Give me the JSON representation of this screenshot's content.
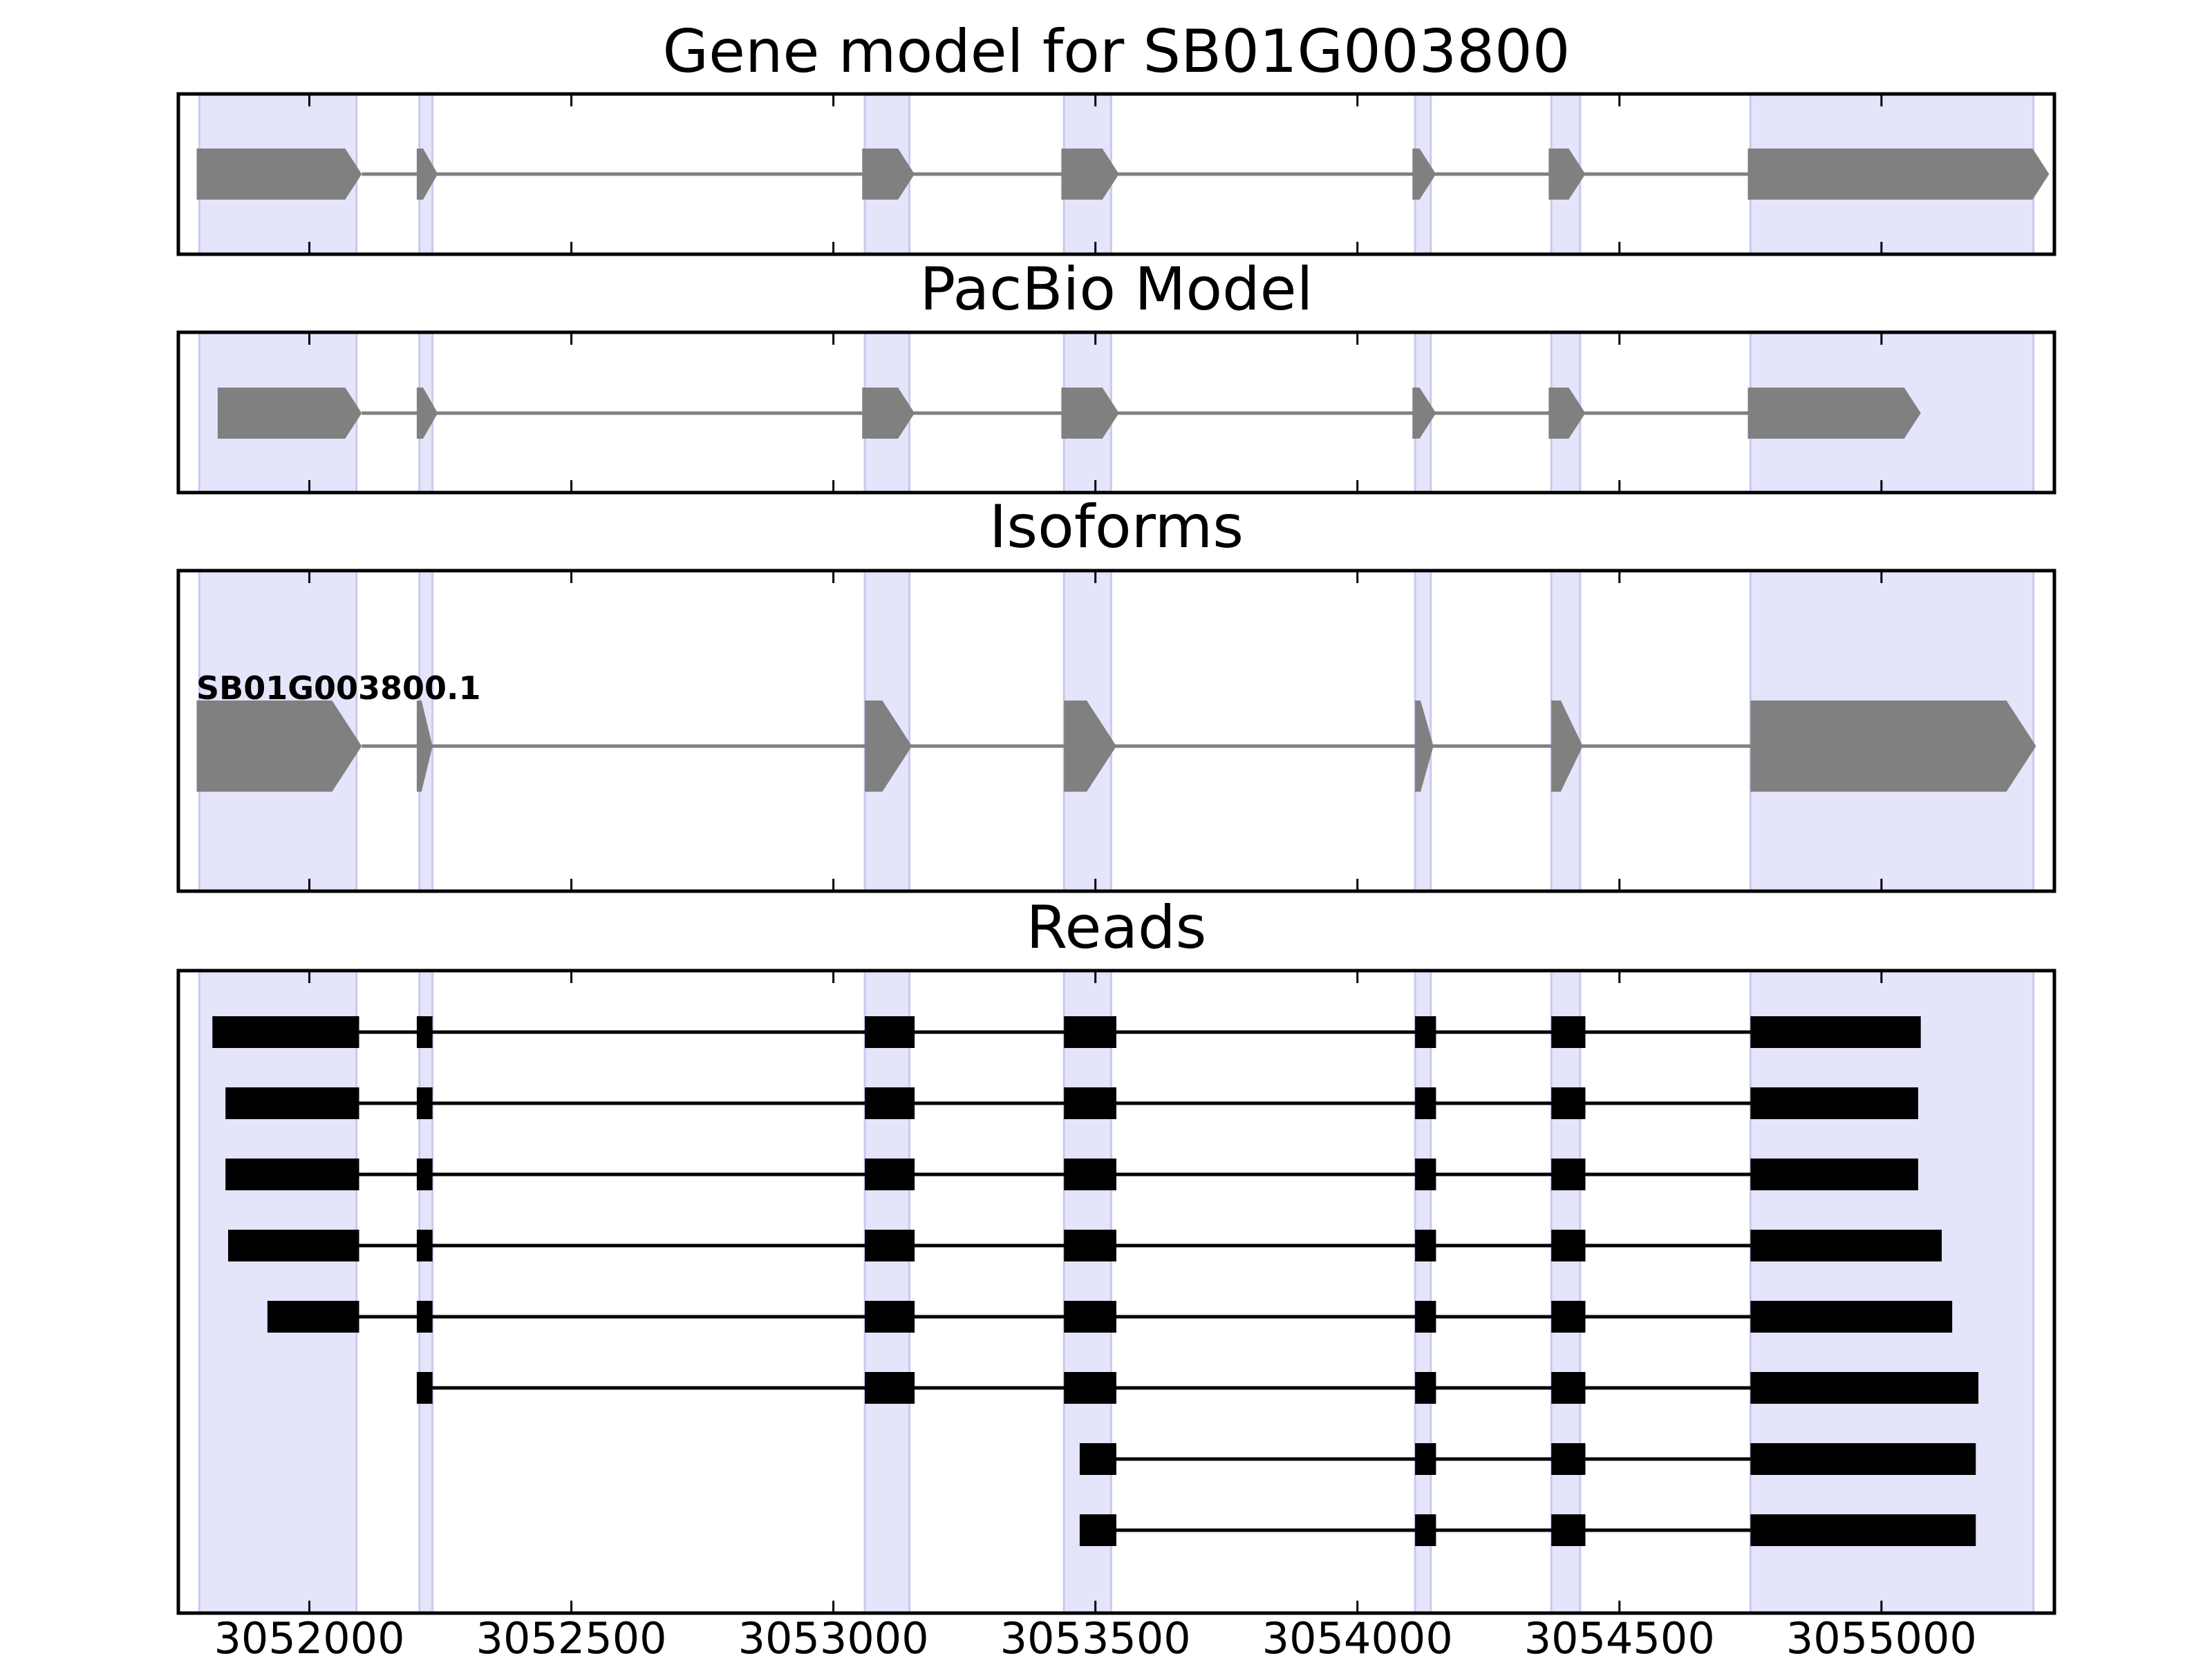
{
  "chart_data": {
    "type": "gene-structure",
    "xlim": [
      3051750,
      3055330
    ],
    "x_ticks": [
      3052000,
      3052500,
      3053000,
      3053500,
      3054000,
      3054500,
      3055000
    ],
    "x_tick_labels": [
      "3052000",
      "3052500",
      "3053000",
      "3053500",
      "3054000",
      "3054500",
      "3055000"
    ],
    "colors": {
      "highlight": "#e4e4fb",
      "highlight_edge": "#c9c9ee",
      "feature": "#808080",
      "intron": "#808080",
      "read": "#000000"
    },
    "exon_highlights": [
      [
        3051790,
        3052090
      ],
      [
        3052210,
        3052235
      ],
      [
        3053060,
        3053145
      ],
      [
        3053440,
        3053530
      ],
      [
        3054110,
        3054140
      ],
      [
        3054370,
        3054425
      ],
      [
        3054750,
        3055290
      ]
    ],
    "panels": [
      {
        "title": "Gene model for SB01G003800",
        "kind": "model",
        "exons": [
          [
            3051785,
            3052100
          ],
          [
            3052205,
            3052245
          ],
          [
            3053055,
            3053155
          ],
          [
            3053435,
            3053545
          ],
          [
            3054105,
            3054150
          ],
          [
            3054365,
            3054435
          ],
          [
            3054745,
            3055320
          ]
        ]
      },
      {
        "title": "PacBio Model",
        "kind": "model",
        "exons": [
          [
            3051825,
            3052100
          ],
          [
            3052205,
            3052245
          ],
          [
            3053055,
            3053155
          ],
          [
            3053435,
            3053545
          ],
          [
            3054105,
            3054150
          ],
          [
            3054365,
            3054435
          ],
          [
            3054745,
            3055075
          ]
        ]
      },
      {
        "title": "Isoforms",
        "kind": "isoform",
        "isoforms": [
          {
            "name": "SB01G003800.1",
            "exons": [
              [
                3051785,
                3052100
              ],
              [
                3052205,
                3052235
              ],
              [
                3053060,
                3053150
              ],
              [
                3053440,
                3053540
              ],
              [
                3054110,
                3054145
              ],
              [
                3054370,
                3054430
              ],
              [
                3054750,
                3055295
              ]
            ]
          }
        ]
      },
      {
        "title": "Reads",
        "kind": "reads",
        "reads": [
          [
            [
              3051815,
              3052095
            ],
            [
              3052205,
              3052235
            ],
            [
              3053060,
              3053155
            ],
            [
              3053440,
              3053540
            ],
            [
              3054110,
              3054150
            ],
            [
              3054370,
              3054435
            ],
            [
              3054750,
              3055075
            ]
          ],
          [
            [
              3051840,
              3052095
            ],
            [
              3052205,
              3052235
            ],
            [
              3053060,
              3053155
            ],
            [
              3053440,
              3053540
            ],
            [
              3054110,
              3054150
            ],
            [
              3054370,
              3054435
            ],
            [
              3054750,
              3055070
            ]
          ],
          [
            [
              3051840,
              3052095
            ],
            [
              3052205,
              3052235
            ],
            [
              3053060,
              3053155
            ],
            [
              3053440,
              3053540
            ],
            [
              3054110,
              3054150
            ],
            [
              3054370,
              3054435
            ],
            [
              3054750,
              3055070
            ]
          ],
          [
            [
              3051845,
              3052095
            ],
            [
              3052205,
              3052235
            ],
            [
              3053060,
              3053155
            ],
            [
              3053440,
              3053540
            ],
            [
              3054110,
              3054150
            ],
            [
              3054370,
              3054435
            ],
            [
              3054750,
              3055115
            ]
          ],
          [
            [
              3051920,
              3052095
            ],
            [
              3052205,
              3052235
            ],
            [
              3053060,
              3053155
            ],
            [
              3053440,
              3053540
            ],
            [
              3054110,
              3054150
            ],
            [
              3054370,
              3054435
            ],
            [
              3054750,
              3055135
            ]
          ],
          [
            [
              3052205,
              3052235
            ],
            [
              3053060,
              3053155
            ],
            [
              3053440,
              3053540
            ],
            [
              3054110,
              3054150
            ],
            [
              3054370,
              3054435
            ],
            [
              3054750,
              3055185
            ]
          ],
          [
            [
              3053470,
              3053540
            ],
            [
              3054110,
              3054150
            ],
            [
              3054370,
              3054435
            ],
            [
              3054750,
              3055180
            ]
          ],
          [
            [
              3053470,
              3053540
            ],
            [
              3054110,
              3054150
            ],
            [
              3054370,
              3054435
            ],
            [
              3054750,
              3055180
            ]
          ]
        ]
      }
    ]
  }
}
